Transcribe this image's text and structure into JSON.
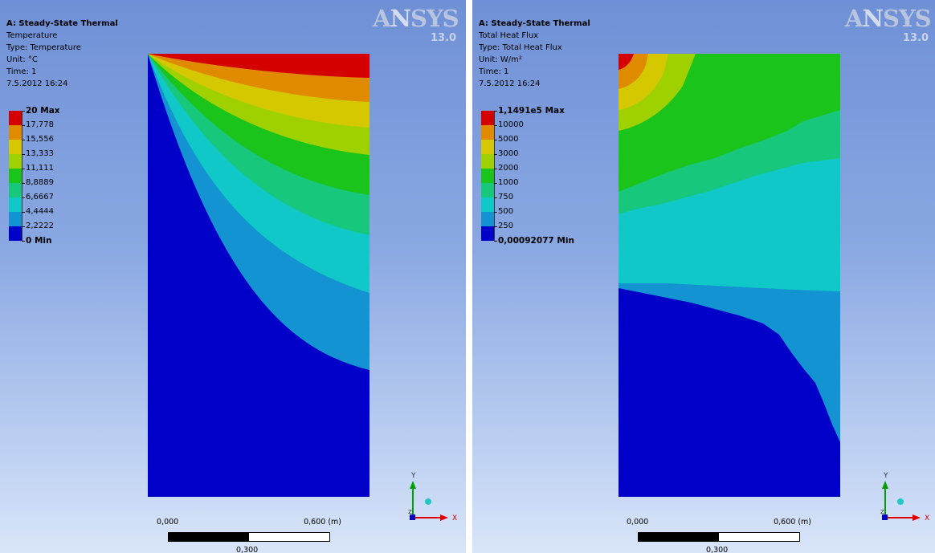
{
  "left_view": {
    "header": {
      "title": "A: Steady-State Thermal",
      "result": "Temperature",
      "type": "Type: Temperature",
      "unit": "Unit: °C",
      "time": "Time: 1",
      "date": "7.5.2012 16:24"
    },
    "legend": {
      "colors": [
        "#d40000",
        "#e08a00",
        "#d5c800",
        "#9fd100",
        "#1bc41b",
        "#16c77c",
        "#10c8c8",
        "#1493d2",
        "#0000c8"
      ],
      "labels": [
        "20 Max",
        "17,778",
        "15,556",
        "13,333",
        "11,111",
        "8,8889",
        "6,6667",
        "4,4444",
        "2,2222",
        "0 Min"
      ]
    },
    "logo": {
      "brand": "ANSYS",
      "version": "13.0"
    },
    "scale": {
      "start": "0,000",
      "end": "0,600 (m)",
      "mid": "0,300"
    },
    "axes": {
      "x": "X",
      "y": "Y",
      "z": "Z"
    }
  },
  "right_view": {
    "header": {
      "title": "A: Steady-State Thermal",
      "result": "Total Heat Flux",
      "type": "Type: Total Heat Flux",
      "unit": "Unit: W/m²",
      "time": "Time: 1",
      "date": "7.5.2012 16:24"
    },
    "legend": {
      "colors": [
        "#d40000",
        "#e08a00",
        "#d5c800",
        "#9fd100",
        "#1bc41b",
        "#16c77c",
        "#10c8c8",
        "#1493d2",
        "#0000c8"
      ],
      "labels": [
        "1,1491e5 Max",
        "10000",
        "5000",
        "3000",
        "2000",
        "1000",
        "750",
        "500",
        "250",
        "0,00092077 Min"
      ]
    },
    "logo": {
      "brand": "ANSYS",
      "version": "13.0"
    },
    "scale": {
      "start": "0,000",
      "end": "0,600 (m)",
      "mid": "0,300"
    },
    "axes": {
      "x": "X",
      "y": "Y",
      "z": "Z"
    }
  }
}
